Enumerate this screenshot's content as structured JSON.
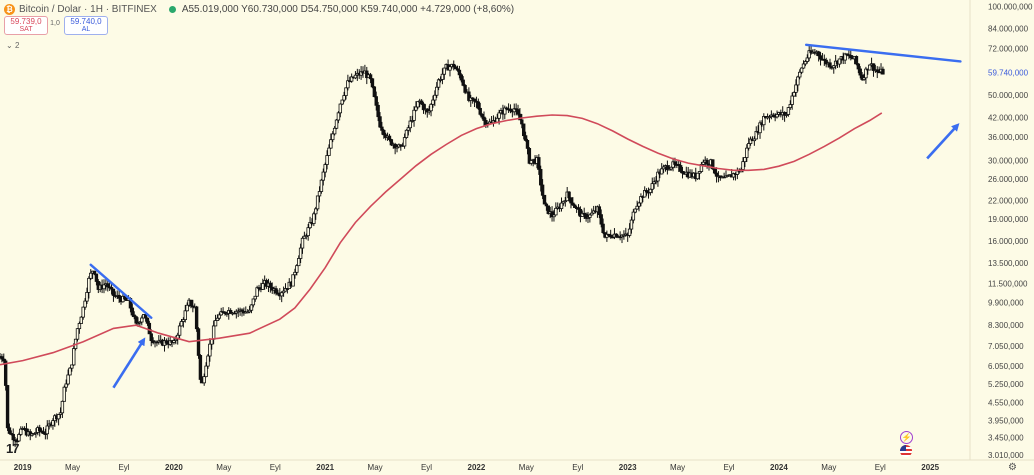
{
  "header": {
    "title": "Bitcoin / Dolar · 1H · BITFINEX",
    "ohlc": "A55.019,000 Y60.730,000 D54.750,000 K59.740,000 +4.729,000 (+8,60%)",
    "indicator_count": "2"
  },
  "quotes": {
    "sell_price": "59.739,0",
    "sell_label": "SAT",
    "spread": "1,0",
    "buy_price": "59.740,0",
    "buy_label": "AL"
  },
  "logo_text": "17",
  "chart_data": {
    "type": "line",
    "scale": "log",
    "ylim": [
      2900000,
      105000000
    ],
    "price_ticks": [
      "100.000,000",
      "84.000,000",
      "72.000,000",
      "59.740,000",
      "50.000,000",
      "42.000,000",
      "36.000,000",
      "30.000,000",
      "26.000,000",
      "22.000,000",
      "19.000,000",
      "16.000,000",
      "13.500,000",
      "11.500,000",
      "9.900,000",
      "8.300,000",
      "7.050,000",
      "6.050,000",
      "5.250,000",
      "4.550,000",
      "3.950,000",
      "3.450,000",
      "3.010,000"
    ],
    "price_tick_values": [
      100000000,
      84000000,
      72000000,
      59740000,
      50000000,
      42000000,
      36000000,
      30000000,
      26000000,
      22000000,
      19000000,
      16000000,
      13500000,
      11500000,
      9900000,
      8300000,
      7050000,
      6050000,
      5250000,
      4550000,
      3950000,
      3450000,
      3010000
    ],
    "current_price": "59.740,000",
    "time_ticks": [
      {
        "label": "2019",
        "t": 2019.0
      },
      {
        "label": "May",
        "t": 2019.33
      },
      {
        "label": "Eyl",
        "t": 2019.67
      },
      {
        "label": "2020",
        "t": 2020.0
      },
      {
        "label": "May",
        "t": 2020.33
      },
      {
        "label": "Eyl",
        "t": 2020.67
      },
      {
        "label": "2021",
        "t": 2021.0
      },
      {
        "label": "May",
        "t": 2021.33
      },
      {
        "label": "Eyl",
        "t": 2021.67
      },
      {
        "label": "2022",
        "t": 2022.0
      },
      {
        "label": "May",
        "t": 2022.33
      },
      {
        "label": "Eyl",
        "t": 2022.67
      },
      {
        "label": "2023",
        "t": 2023.0
      },
      {
        "label": "May",
        "t": 2023.33
      },
      {
        "label": "Eyl",
        "t": 2023.67
      },
      {
        "label": "2024",
        "t": 2024.0
      },
      {
        "label": "May",
        "t": 2024.33
      },
      {
        "label": "Eyl",
        "t": 2024.67
      },
      {
        "label": "2025",
        "t": 2025.0
      }
    ],
    "xlim": [
      2018.85,
      2025.25
    ],
    "price_path": [
      [
        2018.85,
        6500000
      ],
      [
        2018.88,
        6400000
      ],
      [
        2018.9,
        3700000
      ],
      [
        2018.93,
        3500000
      ],
      [
        2018.96,
        3400000
      ],
      [
        2019.0,
        3700000
      ],
      [
        2019.05,
        3500000
      ],
      [
        2019.1,
        3650000
      ],
      [
        2019.15,
        3600000
      ],
      [
        2019.2,
        4000000
      ],
      [
        2019.25,
        4200000
      ],
      [
        2019.28,
        5200000
      ],
      [
        2019.32,
        6000000
      ],
      [
        2019.36,
        8000000
      ],
      [
        2019.4,
        9500000
      ],
      [
        2019.44,
        12000000
      ],
      [
        2019.47,
        13000000
      ],
      [
        2019.5,
        11000000
      ],
      [
        2019.55,
        11500000
      ],
      [
        2019.6,
        10500000
      ],
      [
        2019.65,
        10200000
      ],
      [
        2019.7,
        10000000
      ],
      [
        2019.75,
        8300000
      ],
      [
        2019.8,
        9100000
      ],
      [
        2019.85,
        7500000
      ],
      [
        2019.9,
        7200000
      ],
      [
        2019.95,
        7300000
      ],
      [
        2020.0,
        7200000
      ],
      [
        2020.05,
        8500000
      ],
      [
        2020.1,
        9900000
      ],
      [
        2020.14,
        9500000
      ],
      [
        2020.18,
        5000000
      ],
      [
        2020.22,
        6500000
      ],
      [
        2020.28,
        8800000
      ],
      [
        2020.35,
        9300000
      ],
      [
        2020.42,
        9300000
      ],
      [
        2020.5,
        9200000
      ],
      [
        2020.55,
        11000000
      ],
      [
        2020.6,
        11500000
      ],
      [
        2020.7,
        10700000
      ],
      [
        2020.78,
        11600000
      ],
      [
        2020.85,
        16000000
      ],
      [
        2020.92,
        19000000
      ],
      [
        2021.0,
        29000000
      ],
      [
        2021.05,
        37000000
      ],
      [
        2021.1,
        47000000
      ],
      [
        2021.15,
        55000000
      ],
      [
        2021.2,
        58000000
      ],
      [
        2021.26,
        60000000
      ],
      [
        2021.3,
        56000000
      ],
      [
        2021.36,
        40000000
      ],
      [
        2021.42,
        35000000
      ],
      [
        2021.5,
        33000000
      ],
      [
        2021.56,
        40000000
      ],
      [
        2021.62,
        48000000
      ],
      [
        2021.68,
        43000000
      ],
      [
        2021.75,
        56000000
      ],
      [
        2021.8,
        62000000
      ],
      [
        2021.85,
        63000000
      ],
      [
        2021.9,
        57000000
      ],
      [
        2021.95,
        48000000
      ],
      [
        2022.0,
        47000000
      ],
      [
        2022.05,
        41000000
      ],
      [
        2022.1,
        40000000
      ],
      [
        2022.15,
        43000000
      ],
      [
        2022.2,
        45000000
      ],
      [
        2022.25,
        45000000
      ],
      [
        2022.3,
        40000000
      ],
      [
        2022.35,
        30000000
      ],
      [
        2022.4,
        30000000
      ],
      [
        2022.45,
        21000000
      ],
      [
        2022.5,
        19500000
      ],
      [
        2022.55,
        21000000
      ],
      [
        2022.6,
        23000000
      ],
      [
        2022.65,
        21000000
      ],
      [
        2022.7,
        19400000
      ],
      [
        2022.75,
        19500000
      ],
      [
        2022.8,
        20500000
      ],
      [
        2022.85,
        16500000
      ],
      [
        2022.9,
        16900000
      ],
      [
        2022.95,
        16800000
      ],
      [
        2023.0,
        16600000
      ],
      [
        2023.05,
        21000000
      ],
      [
        2023.1,
        23000000
      ],
      [
        2023.15,
        24000000
      ],
      [
        2023.2,
        27000000
      ],
      [
        2023.25,
        28500000
      ],
      [
        2023.3,
        29000000
      ],
      [
        2023.35,
        28000000
      ],
      [
        2023.4,
        27000000
      ],
      [
        2023.45,
        26500000
      ],
      [
        2023.5,
        30000000
      ],
      [
        2023.55,
        29500000
      ],
      [
        2023.6,
        26000000
      ],
      [
        2023.65,
        26000000
      ],
      [
        2023.7,
        27000000
      ],
      [
        2023.75,
        28000000
      ],
      [
        2023.8,
        34500000
      ],
      [
        2023.85,
        37000000
      ],
      [
        2023.9,
        42000000
      ],
      [
        2023.95,
        43000000
      ],
      [
        2024.0,
        43000000
      ],
      [
        2024.05,
        43000000
      ],
      [
        2024.1,
        52000000
      ],
      [
        2024.15,
        62000000
      ],
      [
        2024.2,
        69000000
      ],
      [
        2024.25,
        70000000
      ],
      [
        2024.3,
        65000000
      ],
      [
        2024.35,
        63000000
      ],
      [
        2024.4,
        66000000
      ],
      [
        2024.45,
        68000000
      ],
      [
        2024.5,
        66000000
      ],
      [
        2024.55,
        57000000
      ],
      [
        2024.6,
        64000000
      ],
      [
        2024.65,
        60000000
      ],
      [
        2024.7,
        59740000
      ]
    ],
    "ma_path": [
      [
        2018.85,
        6100000
      ],
      [
        2019.0,
        6300000
      ],
      [
        2019.2,
        6700000
      ],
      [
        2019.4,
        7300000
      ],
      [
        2019.6,
        8100000
      ],
      [
        2019.75,
        8300000
      ],
      [
        2019.9,
        7800000
      ],
      [
        2020.1,
        7300000
      ],
      [
        2020.3,
        7500000
      ],
      [
        2020.5,
        7800000
      ],
      [
        2020.7,
        8700000
      ],
      [
        2020.8,
        9500000
      ],
      [
        2020.9,
        11000000
      ],
      [
        2021.0,
        13000000
      ],
      [
        2021.1,
        15800000
      ],
      [
        2021.2,
        18500000
      ],
      [
        2021.3,
        21000000
      ],
      [
        2021.4,
        23500000
      ],
      [
        2021.5,
        26000000
      ],
      [
        2021.6,
        28800000
      ],
      [
        2021.7,
        31500000
      ],
      [
        2021.8,
        34000000
      ],
      [
        2021.9,
        36500000
      ],
      [
        2022.0,
        38500000
      ],
      [
        2022.1,
        40000000
      ],
      [
        2022.2,
        41000000
      ],
      [
        2022.3,
        41800000
      ],
      [
        2022.4,
        42400000
      ],
      [
        2022.5,
        42800000
      ],
      [
        2022.6,
        42600000
      ],
      [
        2022.7,
        41700000
      ],
      [
        2022.8,
        40000000
      ],
      [
        2022.9,
        37800000
      ],
      [
        2023.0,
        35500000
      ],
      [
        2023.1,
        33500000
      ],
      [
        2023.2,
        31800000
      ],
      [
        2023.3,
        30400000
      ],
      [
        2023.4,
        29400000
      ],
      [
        2023.5,
        28800000
      ],
      [
        2023.6,
        28200000
      ],
      [
        2023.7,
        27800000
      ],
      [
        2023.8,
        27800000
      ],
      [
        2023.9,
        28000000
      ],
      [
        2024.0,
        28700000
      ],
      [
        2024.1,
        29800000
      ],
      [
        2024.2,
        31500000
      ],
      [
        2024.3,
        33500000
      ],
      [
        2024.4,
        35800000
      ],
      [
        2024.5,
        38500000
      ],
      [
        2024.6,
        41000000
      ],
      [
        2024.68,
        43500000
      ]
    ],
    "trendlines": [
      {
        "from": [
          2019.45,
          13300000
        ],
        "to": [
          2019.85,
          8800000
        ]
      },
      {
        "from": [
          2024.18,
          74000000
        ],
        "to": [
          2025.2,
          65000000
        ]
      }
    ],
    "arrows": [
      {
        "from": [
          2019.6,
          5100000
        ],
        "to": [
          2019.8,
          7400000
        ]
      },
      {
        "from": [
          2024.98,
          30500000
        ],
        "to": [
          2025.18,
          39500000
        ]
      }
    ],
    "colors": {
      "candle": "#111111",
      "ma": "#d04a5a",
      "trendline": "#3a6df0",
      "arrow": "#3a6df0",
      "current_price": "#3b5bdb"
    }
  }
}
